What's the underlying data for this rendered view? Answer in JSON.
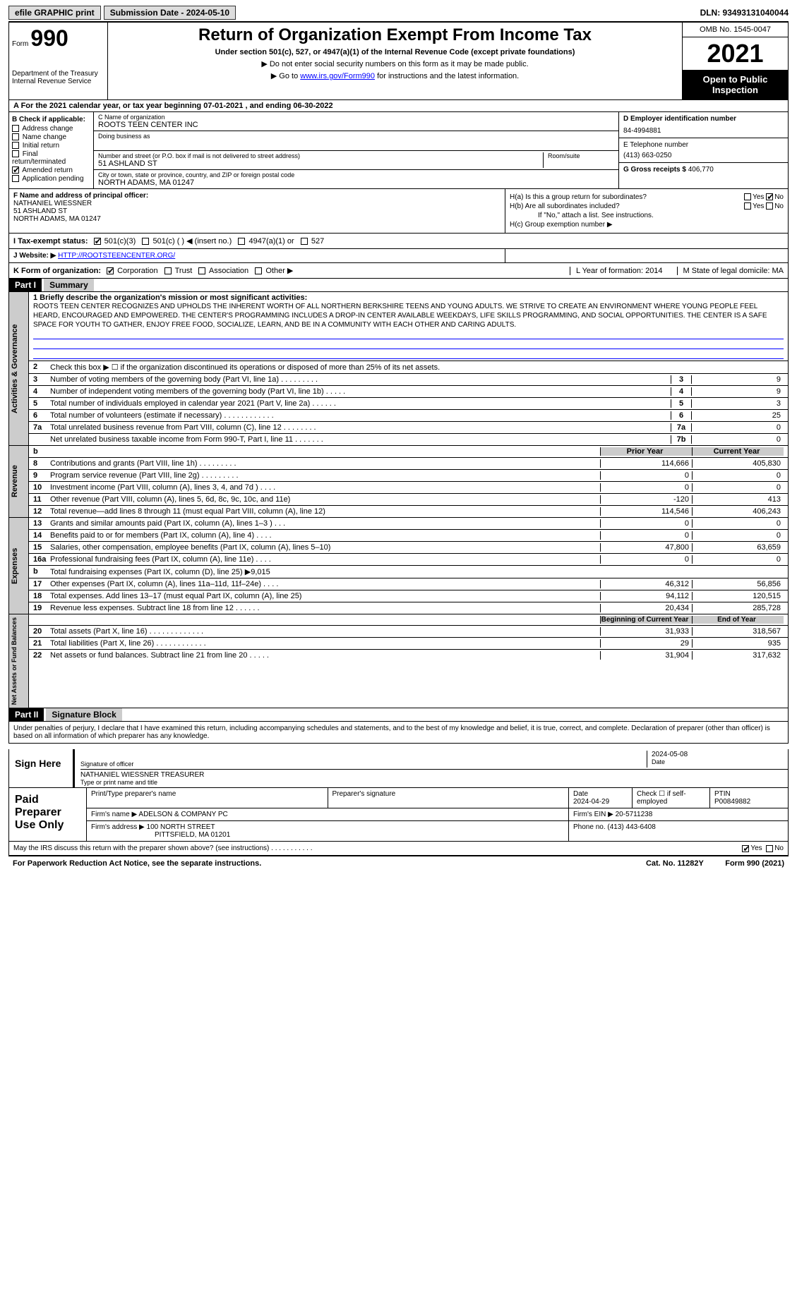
{
  "topbar": {
    "efile": "efile GRAPHIC print",
    "submission": "Submission Date - 2024-05-10",
    "dln": "DLN: 93493131040044"
  },
  "header": {
    "form_label": "Form",
    "form_num": "990",
    "dept": "Department of the Treasury\nInternal Revenue Service",
    "title": "Return of Organization Exempt From Income Tax",
    "sub1": "Under section 501(c), 527, or 4947(a)(1) of the Internal Revenue Code (except private foundations)",
    "sub2": "▶ Do not enter social security numbers on this form as it may be made public.",
    "sub3_pre": "▶ Go to ",
    "sub3_link": "www.irs.gov/Form990",
    "sub3_post": " for instructions and the latest information.",
    "omb": "OMB No. 1545-0047",
    "year": "2021",
    "otp": "Open to Public Inspection"
  },
  "line_a": "A For the 2021 calendar year, or tax year beginning 07-01-2021       , and ending 06-30-2022",
  "box_b": {
    "label": "B Check if applicable:",
    "items": [
      "Address change",
      "Name change",
      "Initial return",
      "Final return/terminated",
      "Amended return",
      "Application pending"
    ],
    "checked_idx": 4
  },
  "box_c": {
    "name_lbl": "C Name of organization",
    "name": "ROOTS TEEN CENTER INC",
    "dba_lbl": "Doing business as",
    "dba": "",
    "addr_lbl": "Number and street (or P.O. box if mail is not delivered to street address)",
    "addr": "51 ASHLAND ST",
    "room_lbl": "Room/suite",
    "city_lbl": "City or town, state or province, country, and ZIP or foreign postal code",
    "city": "NORTH ADAMS, MA  01247"
  },
  "box_d": {
    "lbl": "D Employer identification number",
    "val": "84-4994881"
  },
  "box_e": {
    "lbl": "E Telephone number",
    "val": "(413) 663-0250"
  },
  "box_g": {
    "lbl": "G Gross receipts $",
    "val": "406,770"
  },
  "box_f": {
    "lbl": "F  Name and address of principal officer:",
    "name": "NATHANIEL WIESSNER",
    "addr1": "51 ASHLAND ST",
    "addr2": "NORTH ADAMS, MA  01247"
  },
  "box_h": {
    "ha": "H(a)  Is this a group return for subordinates?",
    "ha_no_checked": true,
    "hb": "H(b)  Are all subordinates included?",
    "hb_note": "If \"No,\" attach a list. See instructions.",
    "hc": "H(c)  Group exemption number ▶"
  },
  "row_i": {
    "lbl": "I   Tax-exempt status:",
    "opts": [
      "501(c)(3)",
      "501(c) (  ) ◀ (insert no.)",
      "4947(a)(1) or",
      "527"
    ],
    "checked_idx": 0
  },
  "row_j": {
    "lbl": "J   Website: ▶",
    "val": "HTTP://ROOTSTEENCENTER.ORG/"
  },
  "row_k": {
    "lbl": "K Form of organization:",
    "opts": [
      "Corporation",
      "Trust",
      "Association",
      "Other ▶"
    ],
    "checked_idx": 0,
    "l": "L Year of formation: 2014",
    "m": "M State of legal domicile: MA"
  },
  "part1": {
    "hdr": "Part I",
    "title": "Summary"
  },
  "mission_lbl": "1   Briefly describe the organization's mission or most significant activities:",
  "mission": "ROOTS TEEN CENTER RECOGNIZES AND UPHOLDS THE INHERENT WORTH OF ALL NORTHERN BERKSHIRE TEENS AND YOUNG ADULTS. WE STRIVE TO CREATE AN ENVIRONMENT WHERE YOUNG PEOPLE FEEL HEARD, ENCOURAGED AND EMPOWERED. THE CENTER'S PROGRAMMING INCLUDES A DROP-IN CENTER AVAILABLE WEEKDAYS, LIFE SKILLS PROGRAMMING, AND SOCIAL OPPORTUNITIES. THE CENTER IS A SAFE SPACE FOR YOUTH TO GATHER, ENJOY FREE FOOD, SOCIALIZE, LEARN, AND BE IN A COMMUNITY WITH EACH OTHER AND CARING ADULTS.",
  "gov_lines": [
    {
      "n": "2",
      "t": "Check this box ▶ ☐  if the organization discontinued its operations or disposed of more than 25% of its net assets.",
      "c": "",
      "v": ""
    },
    {
      "n": "3",
      "t": "Number of voting members of the governing body (Part VI, line 1a)   .    .    .    .    .    .    .    .    .",
      "c": "3",
      "v": "9"
    },
    {
      "n": "4",
      "t": "Number of independent voting members of the governing body (Part VI, line 1b)    .    .    .    .    .",
      "c": "4",
      "v": "9"
    },
    {
      "n": "5",
      "t": "Total number of individuals employed in calendar year 2021 (Part V, line 2a)   .    .    .    .    .    .",
      "c": "5",
      "v": "3"
    },
    {
      "n": "6",
      "t": "Total number of volunteers (estimate if necessary)   .    .    .    .    .    .    .    .    .    .    .    .",
      "c": "6",
      "v": "25"
    },
    {
      "n": "7a",
      "t": "Total unrelated business revenue from Part VIII, column (C), line 12   .    .    .    .    .    .    .    .",
      "c": "7a",
      "v": "0"
    },
    {
      "n": "",
      "t": "Net unrelated business taxable income from Form 990-T, Part I, line 11   .    .    .    .    .    .    .",
      "c": "7b",
      "v": "0"
    }
  ],
  "twocol_hdr": {
    "b": "b",
    "py": "Prior Year",
    "cy": "Current Year"
  },
  "rev_lines": [
    {
      "n": "8",
      "t": "Contributions and grants (Part VIII, line 1h)   .    .    .    .    .    .    .    .    .",
      "py": "114,666",
      "cy": "405,830"
    },
    {
      "n": "9",
      "t": "Program service revenue (Part VIII, line 2g)   .    .    .    .    .    .    .    .    .",
      "py": "0",
      "cy": "0"
    },
    {
      "n": "10",
      "t": "Investment income (Part VIII, column (A), lines 3, 4, and 7d )    .    .    .    .",
      "py": "0",
      "cy": "0"
    },
    {
      "n": "11",
      "t": "Other revenue (Part VIII, column (A), lines 5, 6d, 8c, 9c, 10c, and 11e)",
      "py": "-120",
      "cy": "413"
    },
    {
      "n": "12",
      "t": "Total revenue—add lines 8 through 11 (must equal Part VIII, column (A), line 12)",
      "py": "114,546",
      "cy": "406,243"
    }
  ],
  "exp_lines": [
    {
      "n": "13",
      "t": "Grants and similar amounts paid (Part IX, column (A), lines 1–3 )  .    .    .",
      "py": "0",
      "cy": "0"
    },
    {
      "n": "14",
      "t": "Benefits paid to or for members (Part IX, column (A), line 4)   .    .    .    .",
      "py": "0",
      "cy": "0"
    },
    {
      "n": "15",
      "t": "Salaries, other compensation, employee benefits (Part IX, column (A), lines 5–10)",
      "py": "47,800",
      "cy": "63,659"
    },
    {
      "n": "16a",
      "t": "Professional fundraising fees (Part IX, column (A), line 11e)   .    .    .    .",
      "py": "0",
      "cy": "0"
    },
    {
      "n": "b",
      "t": "Total fundraising expenses (Part IX, column (D), line 25) ▶9,015",
      "py": "",
      "cy": "",
      "gray": true
    },
    {
      "n": "17",
      "t": "Other expenses (Part IX, column (A), lines 11a–11d, 11f–24e)   .    .    .    .",
      "py": "46,312",
      "cy": "56,856"
    },
    {
      "n": "18",
      "t": "Total expenses. Add lines 13–17 (must equal Part IX, column (A), line 25)",
      "py": "94,112",
      "cy": "120,515"
    },
    {
      "n": "19",
      "t": "Revenue less expenses. Subtract line 18 from line 12   .    .    .    .    .    .",
      "py": "20,434",
      "cy": "285,728"
    }
  ],
  "na_hdr": {
    "py": "Beginning of Current Year",
    "cy": "End of Year"
  },
  "na_lines": [
    {
      "n": "20",
      "t": "Total assets (Part X, line 16)   .    .    .    .    .    .    .    .    .    .    .    .    .",
      "py": "31,933",
      "cy": "318,567"
    },
    {
      "n": "21",
      "t": "Total liabilities (Part X, line 26)   .    .    .    .    .    .    .    .    .    .    .    .",
      "py": "29",
      "cy": "935"
    },
    {
      "n": "22",
      "t": "Net assets or fund balances. Subtract line 21 from line 20   .    .    .    .    .",
      "py": "31,904",
      "cy": "317,632"
    }
  ],
  "vtabs": {
    "gov": "Activities & Governance",
    "rev": "Revenue",
    "exp": "Expenses",
    "na": "Net Assets or Fund Balances"
  },
  "part2": {
    "hdr": "Part II",
    "title": "Signature Block"
  },
  "sig_decl": "Under penalties of perjury, I declare that I have examined this return, including accompanying schedules and statements, and to the best of my knowledge and belief, it is true, correct, and complete. Declaration of preparer (other than officer) is based on all information of which preparer has any knowledge.",
  "sign": {
    "here": "Sign Here",
    "sig_lbl": "Signature of officer",
    "date": "2024-05-08",
    "date_lbl": "Date",
    "name": "NATHANIEL WIESSNER  TREASURER",
    "name_lbl": "Type or print name and title"
  },
  "prep": {
    "left": "Paid Preparer Use Only",
    "h1": "Print/Type preparer's name",
    "h2": "Preparer's signature",
    "h3": "Date",
    "h3v": "2024-04-29",
    "h4": "Check ☐ if self-employed",
    "h5": "PTIN",
    "h5v": "P00849882",
    "firm_lbl": "Firm's name      ▶",
    "firm": "ADELSON & COMPANY PC",
    "ein_lbl": "Firm's EIN ▶",
    "ein": "20-5711238",
    "addr_lbl": "Firm's address ▶",
    "addr": "100 NORTH STREET",
    "addr2": "PITTSFIELD, MA  01201",
    "phone_lbl": "Phone no.",
    "phone": "(413) 443-6408"
  },
  "discuss": "May the IRS discuss this return with the preparer shown above? (see instructions)   .    .    .    .    .    .    .    .    .    .    .",
  "discuss_yes": true,
  "footer": {
    "left": "For Paperwork Reduction Act Notice, see the separate instructions.",
    "mid": "Cat. No. 11282Y",
    "right": "Form 990 (2021)"
  }
}
